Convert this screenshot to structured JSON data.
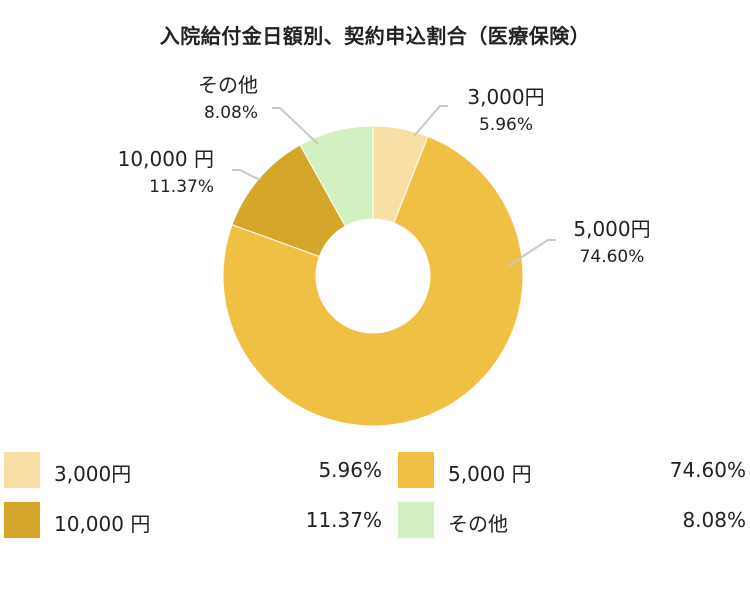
{
  "chart_data": {
    "type": "pie",
    "title": "入院給付金日額別、契約申込割合（医療保険）",
    "categories": [
      "3,000円",
      "5,000 円",
      "10,000 円",
      "その他"
    ],
    "slice_labels": [
      "3,000円",
      "5,000円",
      "10,000 円",
      "その他"
    ],
    "values": [
      5.96,
      74.6,
      11.37,
      8.08
    ],
    "value_labels": [
      "5.96%",
      "74.60%",
      "11.37%",
      "8.08%"
    ],
    "colors": [
      "#f7dfa6",
      "#f0c044",
      "#d4a62a",
      "#d3f0c0"
    ],
    "donut": true,
    "legend_position": "bottom"
  }
}
